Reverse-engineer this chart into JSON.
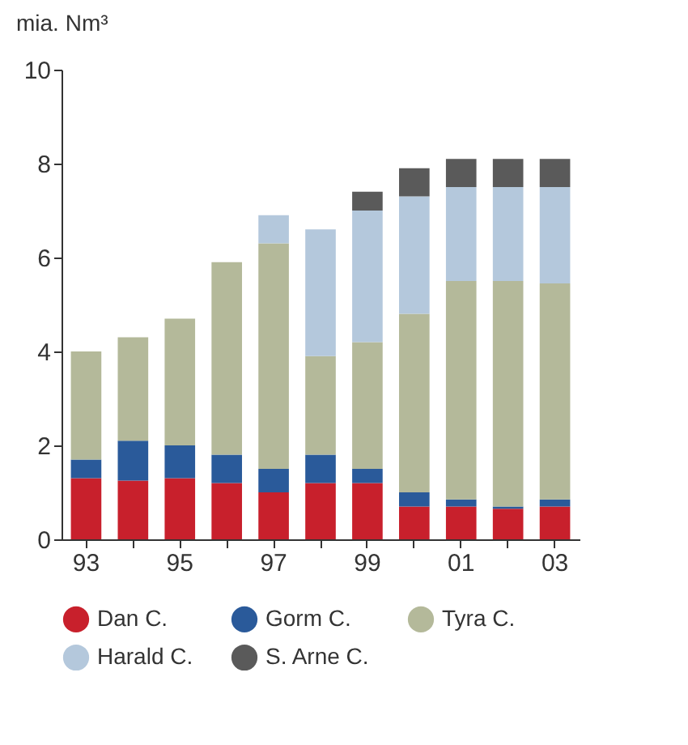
{
  "chart_data": {
    "type": "bar",
    "stacked": true,
    "ylabel": "mia. Nm³",
    "categories": [
      "93",
      null,
      "95",
      null,
      "97",
      null,
      "99",
      null,
      "01",
      null,
      "03"
    ],
    "series": [
      {
        "name": "Dan C.",
        "color": "#c8202c",
        "values": [
          1.3,
          1.25,
          1.3,
          1.2,
          1.0,
          1.2,
          1.2,
          0.7,
          0.7,
          0.65,
          0.7
        ]
      },
      {
        "name": "Gorm C.",
        "color": "#2a5a9a",
        "values": [
          0.4,
          0.85,
          0.7,
          0.6,
          0.5,
          0.6,
          0.3,
          0.3,
          0.15,
          0.05,
          0.15
        ]
      },
      {
        "name": "Tyra C.",
        "color": "#b4b99a",
        "values": [
          2.3,
          2.2,
          2.7,
          4.1,
          4.8,
          2.1,
          2.7,
          3.8,
          4.65,
          4.8,
          4.6
        ]
      },
      {
        "name": "Harald C.",
        "color": "#b4c8dc",
        "values": [
          null,
          null,
          null,
          null,
          0.6,
          2.7,
          2.8,
          2.5,
          2.0,
          2.0,
          2.05
        ]
      },
      {
        "name": "S. Arne C.",
        "color": "#5a5a5a",
        "values": [
          null,
          null,
          null,
          null,
          null,
          null,
          0.4,
          0.6,
          0.6,
          0.6,
          0.6
        ]
      }
    ],
    "ylim": [
      0,
      10
    ],
    "yticks": [
      0,
      2,
      4,
      6,
      8,
      10
    ],
    "grid": false,
    "legend": "bottom"
  }
}
